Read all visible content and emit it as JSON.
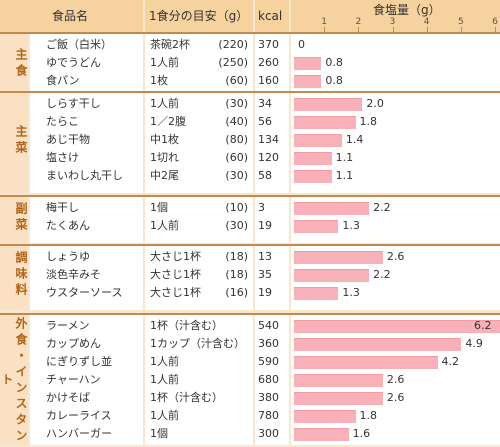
{
  "headers": {
    "food": "食品名",
    "portion": "1食分の目安（g）",
    "kcal": "kcal",
    "salt": "食塩量（g）"
  },
  "axis": {
    "ticks": [
      "1",
      "2",
      "3",
      "4",
      "5",
      "6"
    ],
    "max": 6
  },
  "colors": {
    "bar": "#f8b1b8",
    "header": "#f6d29e",
    "category": "#b0651c"
  },
  "groups": [
    {
      "category": "主食",
      "rows": [
        {
          "name": "ご飯（白米）",
          "portion": "茶碗2杯",
          "grams": "(220)",
          "kcal": "370",
          "salt": "0",
          "salt_value": 0
        },
        {
          "name": "ゆでうどん",
          "portion": "1人前",
          "grams": "(250)",
          "kcal": "260",
          "salt": "0.8",
          "salt_value": 0.8
        },
        {
          "name": "食パン",
          "portion": "1枚",
          "grams": "(60)",
          "kcal": "160",
          "salt": "0.8",
          "salt_value": 0.8
        }
      ]
    },
    {
      "category": "主菜",
      "rows": [
        {
          "name": "しらす干し",
          "portion": "1人前",
          "grams": "(30)",
          "kcal": "34",
          "salt": "2.0",
          "salt_value": 2.0
        },
        {
          "name": "たらこ",
          "portion": "1／2腹",
          "grams": "(40)",
          "kcal": "56",
          "salt": "1.8",
          "salt_value": 1.8
        },
        {
          "name": "あじ干物",
          "portion": "中1枚",
          "grams": "(80)",
          "kcal": "134",
          "salt": "1.4",
          "salt_value": 1.4
        },
        {
          "name": "塩さけ",
          "portion": "1切れ",
          "grams": "(60)",
          "kcal": "120",
          "salt": "1.1",
          "salt_value": 1.1
        },
        {
          "name": "まいわし丸干し",
          "portion": "中2尾",
          "grams": "(30)",
          "kcal": "58",
          "salt": "1.1",
          "salt_value": 1.1
        }
      ]
    },
    {
      "category": "副菜",
      "rows": [
        {
          "name": "梅干し",
          "portion": "1個",
          "grams": "(10)",
          "kcal": "3",
          "salt": "2.2",
          "salt_value": 2.2
        },
        {
          "name": "たくあん",
          "portion": "1人前",
          "grams": "(30)",
          "kcal": "19",
          "salt": "1.3",
          "salt_value": 1.3
        }
      ]
    },
    {
      "category": "調味料",
      "rows": [
        {
          "name": "しょうゆ",
          "portion": "大さじ1杯",
          "grams": "(18)",
          "kcal": "13",
          "salt": "2.6",
          "salt_value": 2.6
        },
        {
          "name": "淡色辛みそ",
          "portion": "大さじ1杯",
          "grams": "(18)",
          "kcal": "35",
          "salt": "2.2",
          "salt_value": 2.2
        },
        {
          "name": "ウスターソース",
          "portion": "大さじ1杯",
          "grams": "(16)",
          "kcal": "19",
          "salt": "1.3",
          "salt_value": 1.3
        }
      ]
    },
    {
      "category": "外食・インスタント",
      "rows": [
        {
          "name": "ラーメン",
          "portion": "1杯（汁含む）",
          "grams": "",
          "kcal": "540",
          "salt": "6.2",
          "salt_value": 6.2
        },
        {
          "name": "カップめん",
          "portion": "1カップ（汁含む）",
          "grams": "",
          "kcal": "360",
          "salt": "4.9",
          "salt_value": 4.9
        },
        {
          "name": "にぎりずし並",
          "portion": "1人前",
          "grams": "",
          "kcal": "590",
          "salt": "4.2",
          "salt_value": 4.2
        },
        {
          "name": "チャーハン",
          "portion": "1人前",
          "grams": "",
          "kcal": "680",
          "salt": "2.6",
          "salt_value": 2.6
        },
        {
          "name": "かけそば",
          "portion": "1杯（汁含む）",
          "grams": "",
          "kcal": "380",
          "salt": "2.6",
          "salt_value": 2.6
        },
        {
          "name": "カレーライス",
          "portion": "1人前",
          "grams": "",
          "kcal": "780",
          "salt": "1.8",
          "salt_value": 1.8
        },
        {
          "name": "ハンバーガー",
          "portion": "1個",
          "grams": "",
          "kcal": "300",
          "salt": "1.6",
          "salt_value": 1.6
        }
      ]
    }
  ]
}
